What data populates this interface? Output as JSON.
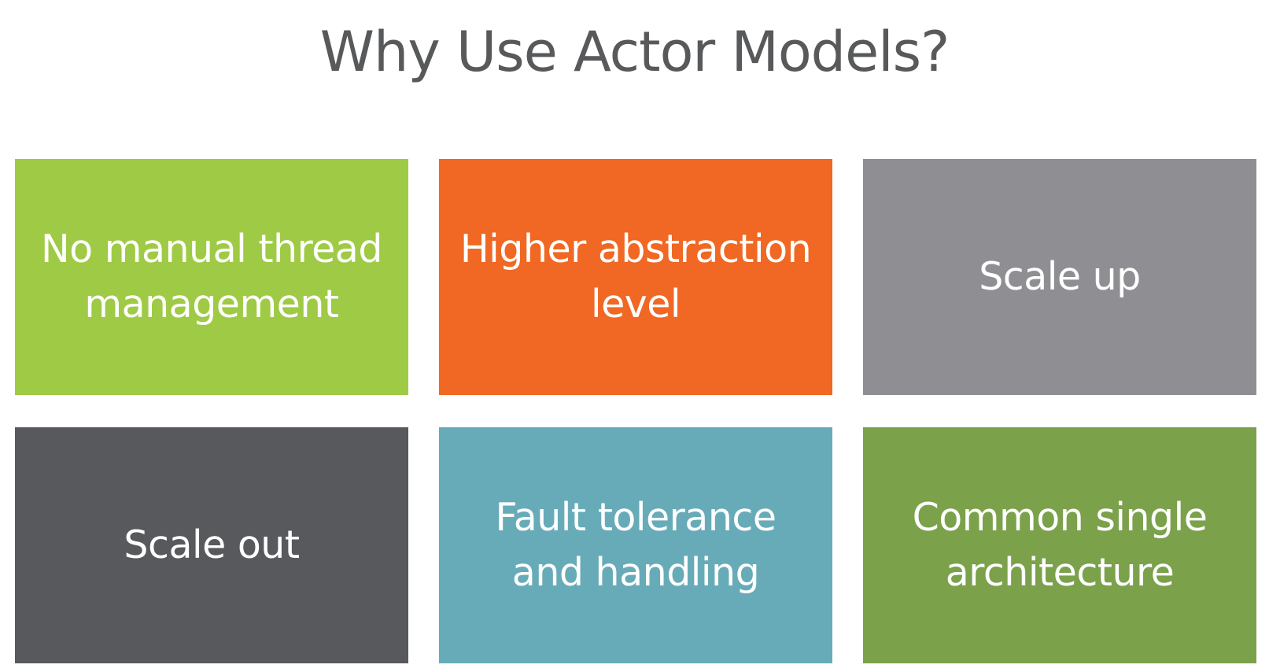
{
  "title": "Why Use Actor Models?",
  "tiles": [
    {
      "label": "No manual thread\nmanagement",
      "color": "#9fca45"
    },
    {
      "label": "Higher abstraction\nlevel",
      "color": "#f06823"
    },
    {
      "label": "Scale up",
      "color": "#8f8e93"
    },
    {
      "label": "Scale out",
      "color": "#58595d"
    },
    {
      "label": "Fault tolerance\nand handling",
      "color": "#68abb8"
    },
    {
      "label": "Common single\narchitecture",
      "color": "#7ba14b"
    }
  ]
}
